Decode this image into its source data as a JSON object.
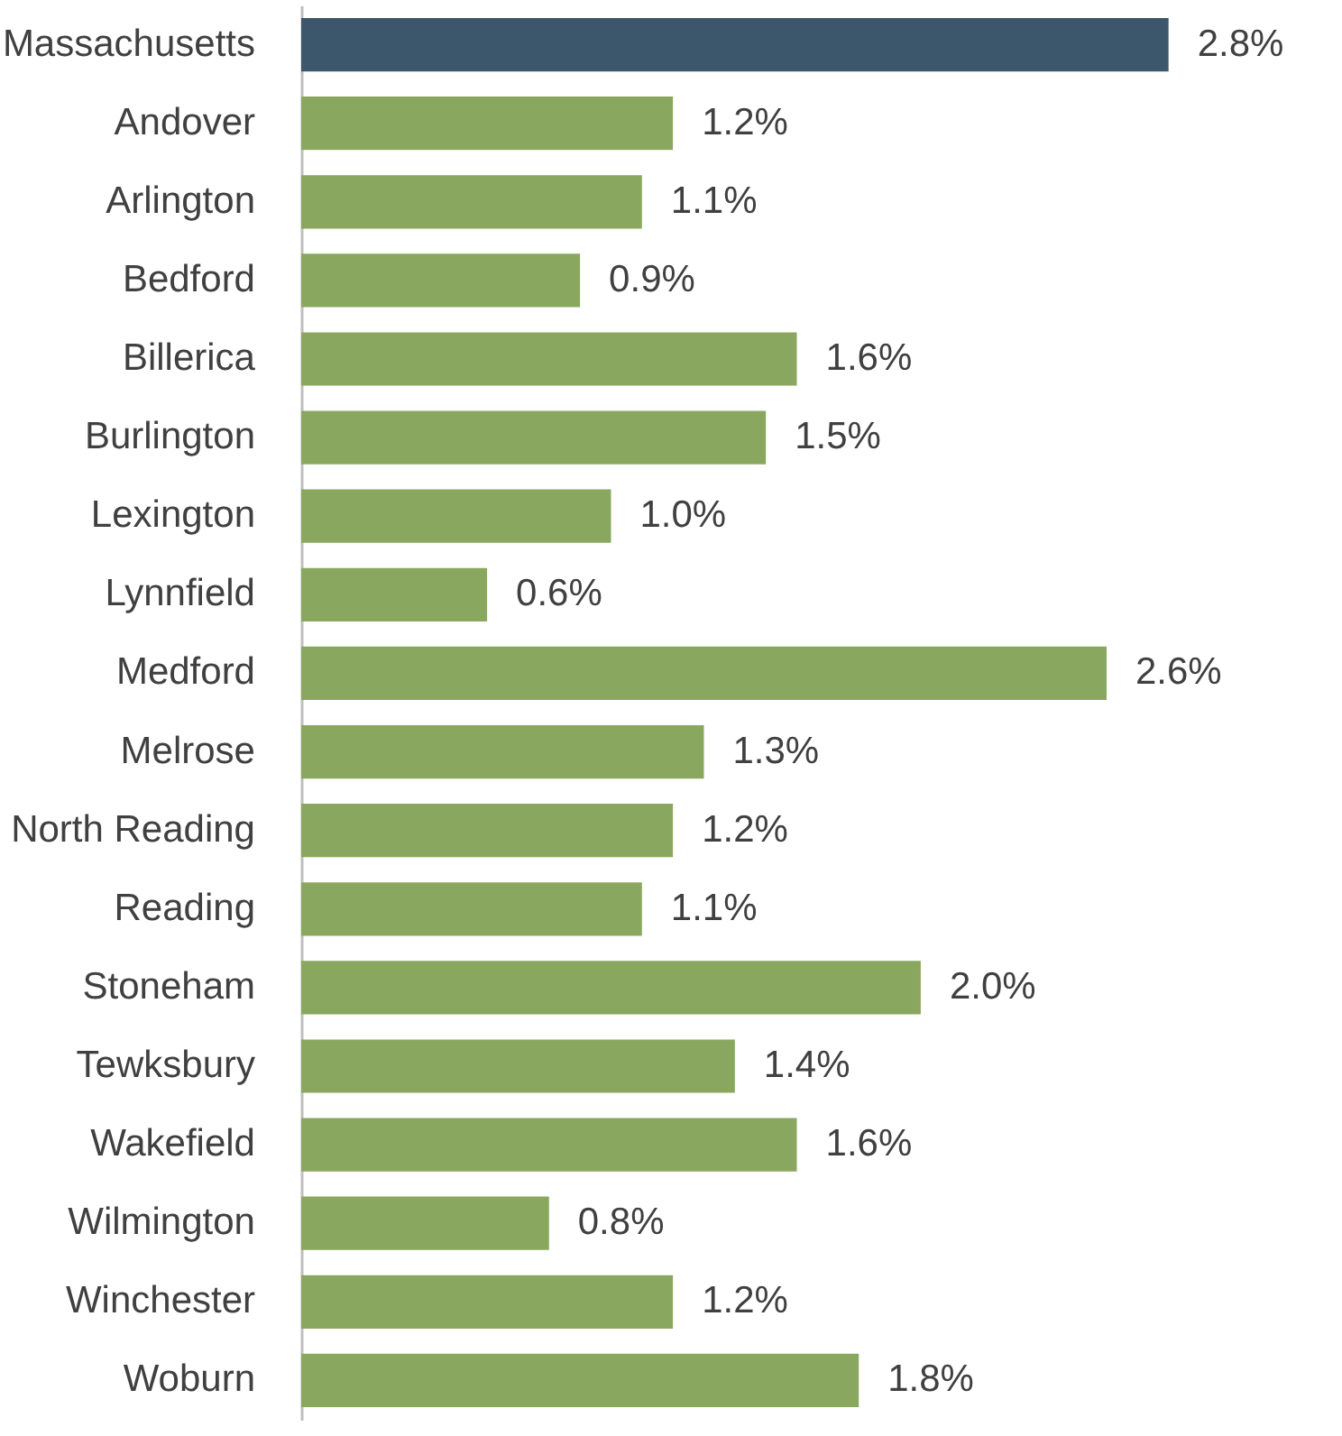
{
  "chart_data": {
    "type": "bar",
    "orientation": "horizontal",
    "categories": [
      "Massachusetts",
      "Andover",
      "Arlington",
      "Bedford",
      "Billerica",
      "Burlington",
      "Lexington",
      "Lynnfield",
      "Medford",
      "Melrose",
      "North Reading",
      "Reading",
      "Stoneham",
      "Tewksbury",
      "Wakefield",
      "Wilmington",
      "Winchester",
      "Woburn"
    ],
    "values": [
      2.8,
      1.2,
      1.1,
      0.9,
      1.6,
      1.5,
      1.0,
      0.6,
      2.6,
      1.3,
      1.2,
      1.1,
      2.0,
      1.4,
      1.6,
      0.8,
      1.2,
      1.8
    ],
    "value_labels": [
      "2.8%",
      "1.2%",
      "1.1%",
      "0.9%",
      "1.6%",
      "1.5%",
      "1.0%",
      "0.6%",
      "2.6%",
      "1.3%",
      "1.2%",
      "1.1%",
      "2.0%",
      "1.4%",
      "1.6%",
      "0.8%",
      "1.2%",
      "1.8%"
    ],
    "colors": [
      "#3c566b",
      "#8aa75f",
      "#8aa75f",
      "#8aa75f",
      "#8aa75f",
      "#8aa75f",
      "#8aa75f",
      "#8aa75f",
      "#8aa75f",
      "#8aa75f",
      "#8aa75f",
      "#8aa75f",
      "#8aa75f",
      "#8aa75f",
      "#8aa75f",
      "#8aa75f",
      "#8aa75f",
      "#8aa75f"
    ],
    "data_labels": false
  }
}
